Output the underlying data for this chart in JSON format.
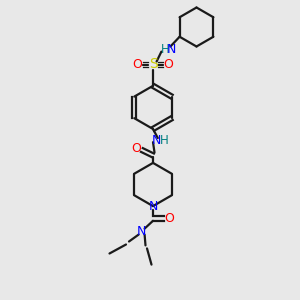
{
  "background_color": "#e8e8e8",
  "bond_color": "#1a1a1a",
  "N_color": "#0000ff",
  "O_color": "#ff0000",
  "S_color": "#cccc00",
  "NH_color": "#008080",
  "figsize": [
    3.0,
    3.0
  ],
  "dpi": 100,
  "xlim": [
    0,
    10
  ],
  "ylim": [
    0,
    10
  ]
}
